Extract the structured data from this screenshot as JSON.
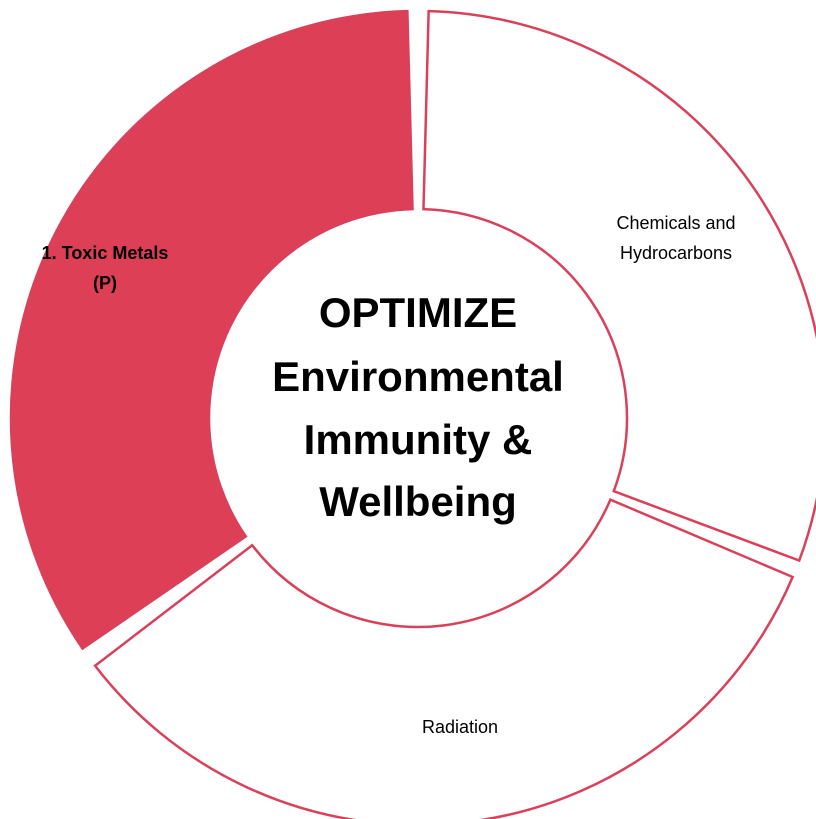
{
  "center": {
    "lines": [
      "OPTIMIZE",
      "Environmental",
      "Immunity &",
      "Wellbeing"
    ]
  },
  "segments": [
    {
      "label": [
        "1. Toxic Metals",
        "(P)"
      ]
    },
    {
      "label": [
        "Chemicals and",
        "Hydrocarbons"
      ]
    },
    {
      "label": [
        "Radiation"
      ]
    }
  ]
}
